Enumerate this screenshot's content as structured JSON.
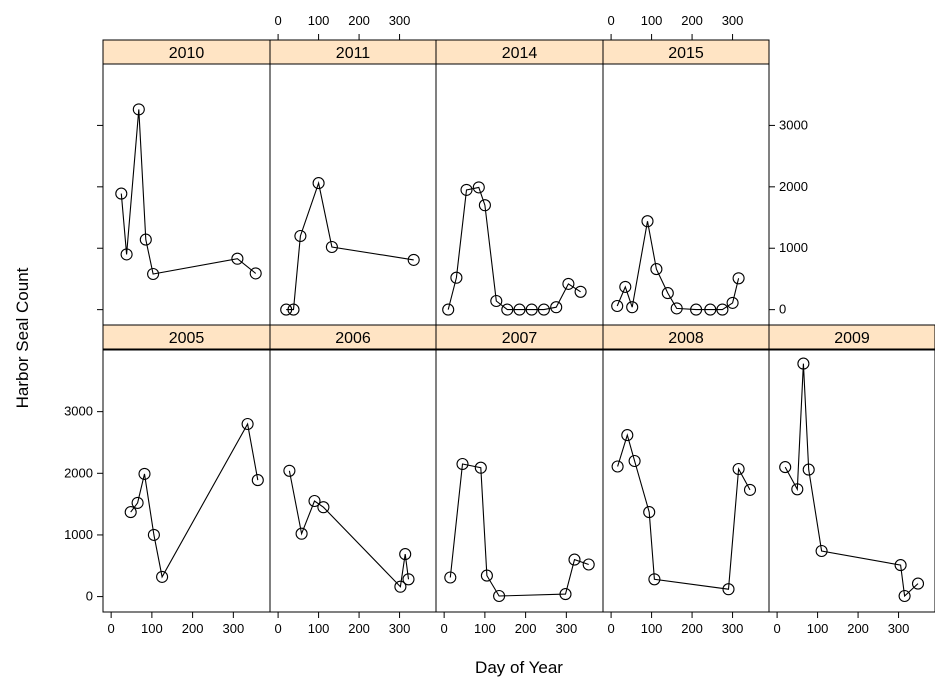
{
  "chart_data": {
    "type": "line",
    "xlabel": "Day of Year",
    "ylabel": "Harbor Seal Count",
    "xlim": [
      -20,
      390
    ],
    "ylim": [
      -250,
      4000
    ],
    "x_ticks": [
      "0",
      "100",
      "200",
      "300"
    ],
    "y_ticks": [
      "0",
      "1000",
      "2000",
      "3000"
    ],
    "colors": {
      "strip": "#ffe4c4",
      "line": "#000000"
    },
    "panels": [
      {
        "title": "2005",
        "points": [
          [
            48,
            1370
          ],
          [
            65,
            1520
          ],
          [
            82,
            1990
          ],
          [
            105,
            1000
          ],
          [
            125,
            320
          ],
          [
            335,
            2800
          ],
          [
            360,
            1890
          ]
        ]
      },
      {
        "title": "2006",
        "points": [
          [
            28,
            2040
          ],
          [
            58,
            1020
          ],
          [
            90,
            1550
          ],
          [
            112,
            1450
          ],
          [
            302,
            160
          ],
          [
            314,
            690
          ],
          [
            322,
            280
          ]
        ]
      },
      {
        "title": "2007",
        "points": [
          [
            15,
            310
          ],
          [
            45,
            2150
          ],
          [
            90,
            2090
          ],
          [
            105,
            340
          ],
          [
            135,
            10
          ],
          [
            298,
            40
          ],
          [
            320,
            600
          ],
          [
            355,
            520
          ]
        ]
      },
      {
        "title": "2008",
        "points": [
          [
            16,
            2110
          ],
          [
            40,
            2620
          ],
          [
            58,
            2200
          ],
          [
            94,
            1370
          ],
          [
            107,
            280
          ],
          [
            290,
            120
          ],
          [
            315,
            2070
          ],
          [
            343,
            1730
          ]
        ]
      },
      {
        "title": "2009",
        "points": [
          [
            20,
            2100
          ],
          [
            50,
            1740
          ],
          [
            65,
            3780
          ],
          [
            78,
            2060
          ],
          [
            110,
            740
          ],
          [
            305,
            510
          ],
          [
            315,
            10
          ],
          [
            348,
            210
          ]
        ]
      },
      {
        "title": "2010",
        "points": [
          [
            25,
            1890
          ],
          [
            38,
            900
          ],
          [
            68,
            3260
          ],
          [
            85,
            1140
          ],
          [
            103,
            580
          ],
          [
            310,
            830
          ],
          [
            355,
            590
          ]
        ]
      },
      {
        "title": "2011",
        "points": [
          [
            20,
            0
          ],
          [
            38,
            0
          ],
          [
            55,
            1200
          ],
          [
            100,
            2060
          ],
          [
            133,
            1020
          ],
          [
            335,
            810
          ]
        ]
      },
      {
        "title": "2014",
        "points": [
          [
            10,
            0
          ],
          [
            30,
            520
          ],
          [
            55,
            1950
          ],
          [
            85,
            1990
          ],
          [
            100,
            1700
          ],
          [
            128,
            140
          ],
          [
            155,
            0
          ],
          [
            185,
            0
          ],
          [
            215,
            0
          ],
          [
            245,
            0
          ],
          [
            275,
            40
          ],
          [
            305,
            420
          ],
          [
            335,
            290
          ]
        ]
      },
      {
        "title": "2015",
        "points": [
          [
            15,
            60
          ],
          [
            35,
            370
          ],
          [
            52,
            40
          ],
          [
            90,
            1440
          ],
          [
            112,
            660
          ],
          [
            140,
            270
          ],
          [
            162,
            20
          ],
          [
            210,
            0
          ],
          [
            245,
            0
          ],
          [
            275,
            0
          ],
          [
            300,
            110
          ],
          [
            315,
            510
          ]
        ]
      }
    ]
  }
}
